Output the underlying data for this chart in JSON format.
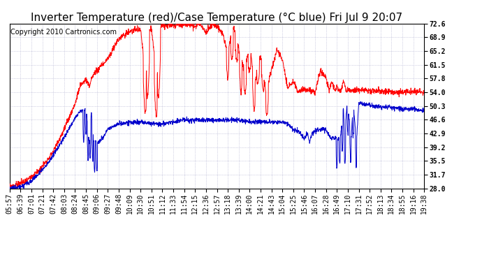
{
  "title": "Inverter Temperature (red)/Case Temperature (°C blue) Fri Jul 9 20:07",
  "copyright": "Copyright 2010 Cartronics.com",
  "yticks": [
    28.0,
    31.7,
    35.5,
    39.2,
    42.9,
    46.6,
    50.3,
    54.0,
    57.8,
    61.5,
    65.2,
    68.9,
    72.6
  ],
  "ymin": 28.0,
  "ymax": 72.6,
  "xtick_labels": [
    "05:57",
    "06:39",
    "07:01",
    "07:21",
    "07:42",
    "08:03",
    "08:24",
    "08:45",
    "09:06",
    "09:27",
    "09:48",
    "10:09",
    "10:30",
    "10:51",
    "11:12",
    "11:33",
    "11:54",
    "12:15",
    "12:36",
    "12:57",
    "13:18",
    "13:39",
    "14:00",
    "14:21",
    "14:43",
    "15:04",
    "15:25",
    "15:46",
    "16:07",
    "16:28",
    "16:49",
    "17:10",
    "17:31",
    "17:52",
    "18:13",
    "18:34",
    "18:55",
    "19:16",
    "19:38"
  ],
  "bg_color": "#ffffff",
  "plot_bg_color": "#ffffff",
  "red_line_color": "#ff0000",
  "blue_line_color": "#0000cc",
  "grid_color": "#aaaacc",
  "title_fontsize": 11,
  "copyright_fontsize": 7,
  "tick_label_fontsize": 7
}
